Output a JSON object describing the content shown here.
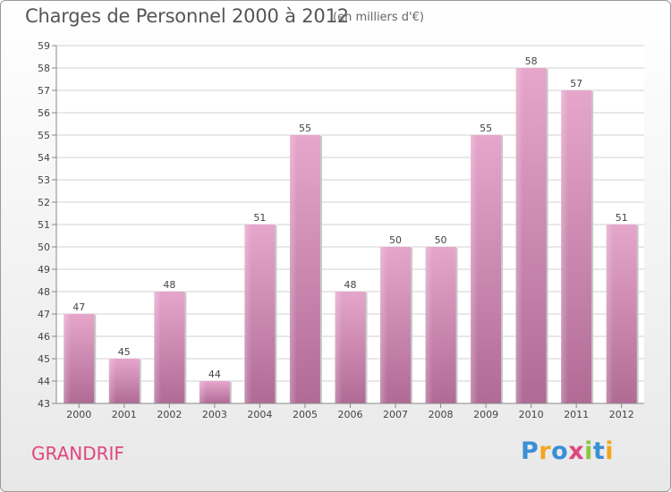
{
  "header": {
    "title": "Charges de Personnel 2000 à 2012",
    "subtitle": "(en milliers d'€)"
  },
  "footer": {
    "commune": "GRANDRIF",
    "brand": "Proxiti",
    "brand_letters": [
      {
        "ch": "P",
        "color": "#3a8fd6"
      },
      {
        "ch": "r",
        "color": "#f2a61f"
      },
      {
        "ch": "o",
        "color": "#3a8fd6"
      },
      {
        "ch": "x",
        "color": "#e0477f"
      },
      {
        "ch": "i",
        "color": "#8cc63f"
      },
      {
        "ch": "t",
        "color": "#3a8fd6"
      },
      {
        "ch": "i",
        "color": "#f2a61f"
      }
    ]
  },
  "chart_data": {
    "type": "bar",
    "categories": [
      "2000",
      "2001",
      "2002",
      "2003",
      "2004",
      "2005",
      "2006",
      "2007",
      "2008",
      "2009",
      "2010",
      "2011",
      "2012"
    ],
    "values": [
      47,
      45,
      48,
      44,
      51,
      55,
      48,
      50,
      50,
      55,
      58,
      57,
      51
    ],
    "ylim": [
      43,
      59
    ],
    "yticks": [
      43,
      44,
      45,
      46,
      47,
      48,
      49,
      50,
      51,
      52,
      53,
      54,
      55,
      56,
      57,
      58,
      59
    ],
    "grid": true,
    "bar_color": "#d88bb4"
  }
}
